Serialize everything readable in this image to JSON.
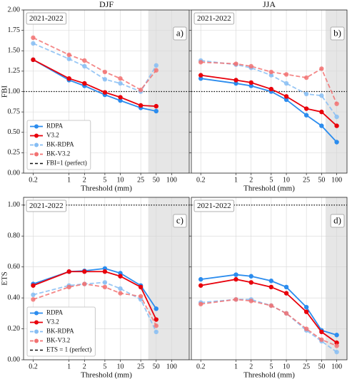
{
  "chart_data": [
    {
      "type": "line",
      "title": "DJF",
      "panel_label": "a)",
      "annotation": "2021-2022",
      "ylabel": "FBI",
      "xlabel": "Threshold (mm)",
      "log_x": true,
      "grid": true,
      "legend": "lower left",
      "x": [
        0.2,
        1,
        2,
        5,
        10,
        25,
        50
      ],
      "xlim": [
        0.13,
        220
      ],
      "xticks": [
        0.2,
        1,
        2,
        5,
        10,
        25,
        50,
        100
      ],
      "ylim": [
        0,
        2
      ],
      "yticks": [
        {
          "value": 0,
          "label": "0.00"
        },
        {
          "value": 0.25,
          "label": "0.25"
        },
        {
          "value": 0.5,
          "label": "0.50"
        },
        {
          "value": 0.75,
          "label": "0.75"
        },
        {
          "value": 1,
          "label": "1.00"
        },
        {
          "value": 1.25,
          "label": "1.25"
        },
        {
          "value": 1.5,
          "label": "1.50"
        },
        {
          "value": 1.75,
          "label": "1.75"
        },
        {
          "value": 2,
          "label": "2.00"
        }
      ],
      "shaded_region": [
        35,
        220
      ],
      "reference_line": {
        "value": 1,
        "label": "FBI=1 (perfect)"
      },
      "series": [
        {
          "name": "RDPA",
          "color": "#2b8cee",
          "linestyle": "solid",
          "values": [
            1.39,
            1.14,
            1.07,
            0.96,
            0.89,
            0.8,
            0.76
          ]
        },
        {
          "name": "V3.2",
          "color": "#e8000b",
          "linestyle": "solid",
          "values": [
            1.39,
            1.16,
            1.1,
            0.99,
            0.93,
            0.83,
            0.82
          ]
        },
        {
          "name": "BK-RDPA",
          "color": "#86bdf3",
          "linestyle": "dashed",
          "values": [
            1.59,
            1.4,
            1.31,
            1.15,
            1.1,
            1.0,
            1.32
          ]
        },
        {
          "name": "BK-V3.2",
          "color": "#f27272",
          "linestyle": "dashed",
          "values": [
            1.66,
            1.45,
            1.38,
            1.24,
            1.16,
            1.02,
            1.26
          ]
        }
      ]
    },
    {
      "type": "line",
      "title": "JJA",
      "panel_label": "b)",
      "annotation": "2021-2022",
      "xlabel": "Threshold (mm)",
      "log_x": true,
      "grid": true,
      "x": [
        0.2,
        1,
        2,
        5,
        10,
        25,
        50,
        100
      ],
      "xlim": [
        0.13,
        160
      ],
      "xticks": [
        0.2,
        1,
        2,
        5,
        10,
        25,
        50,
        100
      ],
      "ylim": [
        0,
        2
      ],
      "shaded_region": [
        60,
        160
      ],
      "reference_line": {
        "value": 1
      },
      "series": [
        {
          "name": "RDPA",
          "color": "#2b8cee",
          "linestyle": "solid",
          "values": [
            1.16,
            1.1,
            1.07,
            1.0,
            0.9,
            0.71,
            0.58,
            0.38
          ]
        },
        {
          "name": "V3.2",
          "color": "#e8000b",
          "linestyle": "solid",
          "values": [
            1.2,
            1.14,
            1.11,
            1.03,
            0.94,
            0.79,
            0.75,
            0.58
          ]
        },
        {
          "name": "BK-RDPA",
          "color": "#86bdf3",
          "linestyle": "dashed",
          "values": [
            1.38,
            1.33,
            1.29,
            1.2,
            1.1,
            0.97,
            0.95,
            0.69
          ]
        },
        {
          "name": "BK-V3.2",
          "color": "#f27272",
          "linestyle": "dashed",
          "values": [
            1.36,
            1.34,
            1.31,
            1.24,
            1.21,
            1.17,
            1.28,
            0.85
          ]
        }
      ]
    },
    {
      "type": "line",
      "panel_label": "c)",
      "annotation": "2021-2022",
      "ylabel": "ETS",
      "xlabel": "Threshold (mm)",
      "log_x": true,
      "grid": true,
      "legend": "lower left",
      "x": [
        0.2,
        1,
        2,
        5,
        10,
        25,
        50
      ],
      "xlim": [
        0.13,
        220
      ],
      "xticks": [
        0.2,
        1,
        2,
        5,
        10,
        25,
        50,
        100
      ],
      "ylim": [
        0,
        1.05
      ],
      "yticks": [
        {
          "value": 0,
          "label": "0.00"
        },
        {
          "value": 0.2,
          "label": "0.20"
        },
        {
          "value": 0.4,
          "label": "0.40"
        },
        {
          "value": 0.6,
          "label": "0.60"
        },
        {
          "value": 0.8,
          "label": "0.80"
        },
        {
          "value": 1,
          "label": "1.00"
        }
      ],
      "shaded_region": [
        35,
        220
      ],
      "reference_line": {
        "value": 1,
        "label": "ETS = 1 (perfect)"
      },
      "series": [
        {
          "name": "RDPA",
          "color": "#2b8cee",
          "linestyle": "solid",
          "values": [
            0.49,
            0.57,
            0.575,
            0.59,
            0.56,
            0.48,
            0.33
          ]
        },
        {
          "name": "V3.2",
          "color": "#e8000b",
          "linestyle": "solid",
          "values": [
            0.48,
            0.57,
            0.57,
            0.57,
            0.54,
            0.47,
            0.26
          ]
        },
        {
          "name": "BK-RDPA",
          "color": "#86bdf3",
          "linestyle": "dashed",
          "values": [
            0.42,
            0.48,
            0.49,
            0.5,
            0.46,
            0.39,
            0.18
          ]
        },
        {
          "name": "BK-V3.2",
          "color": "#f27272",
          "linestyle": "dashed",
          "values": [
            0.39,
            0.47,
            0.49,
            0.47,
            0.43,
            0.41,
            0.22
          ]
        }
      ]
    },
    {
      "type": "line",
      "panel_label": "d)",
      "annotation": "2021-2022",
      "xlabel": "Threshold (mm)",
      "log_x": true,
      "grid": true,
      "x": [
        0.2,
        1,
        2,
        5,
        10,
        25,
        50,
        100
      ],
      "xlim": [
        0.13,
        160
      ],
      "xticks": [
        0.2,
        1,
        2,
        5,
        10,
        25,
        50,
        100
      ],
      "ylim": [
        0,
        1.05
      ],
      "shaded_region": [
        60,
        160
      ],
      "reference_line": {
        "value": 1
      },
      "series": [
        {
          "name": "RDPA",
          "color": "#2b8cee",
          "linestyle": "solid",
          "values": [
            0.52,
            0.55,
            0.54,
            0.51,
            0.47,
            0.34,
            0.19,
            0.16
          ]
        },
        {
          "name": "V3.2",
          "color": "#e8000b",
          "linestyle": "solid",
          "values": [
            0.48,
            0.52,
            0.5,
            0.47,
            0.43,
            0.31,
            0.18,
            0.11
          ]
        },
        {
          "name": "BK-RDPA",
          "color": "#86bdf3",
          "linestyle": "dashed",
          "values": [
            0.37,
            0.39,
            0.39,
            0.35,
            0.3,
            0.19,
            0.12,
            0.05
          ]
        },
        {
          "name": "BK-V3.2",
          "color": "#f27272",
          "linestyle": "dashed",
          "values": [
            0.36,
            0.39,
            0.38,
            0.35,
            0.3,
            0.2,
            0.13,
            0.09
          ]
        }
      ]
    }
  ]
}
